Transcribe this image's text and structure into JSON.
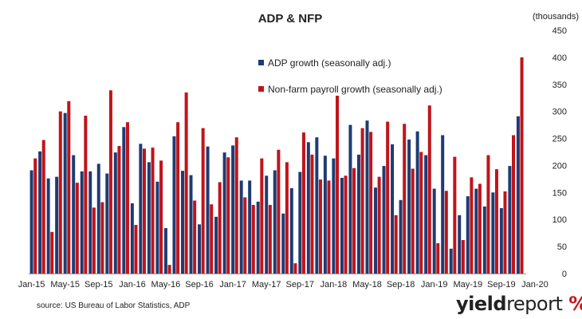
{
  "chart_data": {
    "type": "bar",
    "title": "ADP & NFP",
    "unit_label": "(thousands)",
    "ylim": [
      0,
      450
    ],
    "y_ticks": [
      0,
      50,
      100,
      150,
      200,
      250,
      300,
      350,
      400,
      450
    ],
    "axis_side": "right",
    "grid": false,
    "legend_placement": "top-center",
    "x_tick_labels": [
      {
        "label": "Jan-15",
        "index": 0
      },
      {
        "label": "May-15",
        "index": 4
      },
      {
        "label": "Sep-15",
        "index": 8
      },
      {
        "label": "Jan-16",
        "index": 12
      },
      {
        "label": "May-16",
        "index": 16
      },
      {
        "label": "Sep-16",
        "index": 20
      },
      {
        "label": "Jan-17",
        "index": 24
      },
      {
        "label": "May-17",
        "index": 28
      },
      {
        "label": "Sep-17",
        "index": 32
      },
      {
        "label": "Jan-18",
        "index": 36
      },
      {
        "label": "May-18",
        "index": 40
      },
      {
        "label": "Sep-18",
        "index": 44
      },
      {
        "label": "Jan-19",
        "index": 48
      },
      {
        "label": "May-19",
        "index": 52
      },
      {
        "label": "Sep-19",
        "index": 56
      },
      {
        "label": "Jan-20",
        "index": 60
      }
    ],
    "series": [
      {
        "name": "ADP growth (seasonally adj.)",
        "color": "#1f3b73",
        "values": [
          191,
          226,
          176,
          179,
          297,
          219,
          189,
          189,
          203,
          185,
          224,
          271,
          130,
          240,
          206,
          170,
          84,
          254,
          190,
          182,
          91,
          235,
          105,
          224,
          237,
          172,
          172,
          133,
          181,
          191,
          111,
          158,
          188,
          243,
          252,
          218,
          213,
          177,
          275,
          220,
          283,
          159,
          199,
          239,
          136,
          248,
          263,
          219,
          157,
          256,
          46,
          108,
          143,
          157,
          124,
          150,
          121,
          199,
          291
        ]
      },
      {
        "name": "Non-farm payroll growth (seasonally adj.)",
        "color": "#c0141b",
        "values": [
          213,
          247,
          77,
          300,
          319,
          168,
          292,
          122,
          132,
          339,
          236,
          280,
          90,
          231,
          233,
          209,
          16,
          280,
          335,
          135,
          269,
          128,
          169,
          215,
          252,
          141,
          127,
          213,
          127,
          229,
          206,
          19,
          261,
          220,
          174,
          172,
          329,
          181,
          195,
          269,
          262,
          179,
          281,
          108,
          277,
          194,
          225,
          311,
          56,
          153,
          216,
          62,
          178,
          166,
          219,
          193,
          152,
          256,
          400
        ]
      }
    ]
  },
  "source_text": "source: US Bureau of Labor Statistics, ADP",
  "brand": {
    "part1": "yield",
    "part2": "report",
    "symbol": "%"
  }
}
